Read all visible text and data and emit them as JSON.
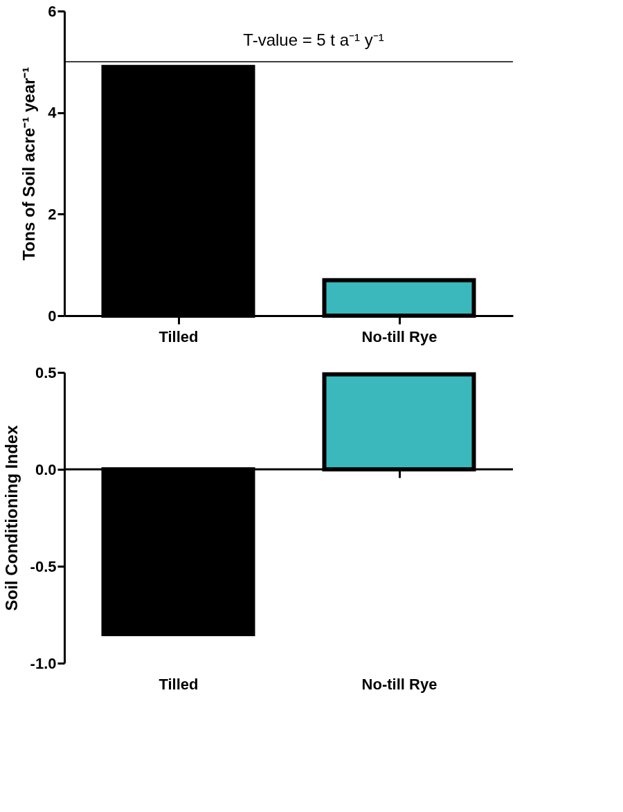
{
  "chart_data": [
    {
      "type": "bar",
      "ylabel": "Tons of Soil acre⁻¹ year⁻¹",
      "categories": [
        "Tilled",
        "No-till Rye"
      ],
      "series": [
        {
          "color": null,
          "colors": [
            "#000000",
            "#3ab8bc"
          ],
          "values": [
            4.9,
            0.7
          ]
        }
      ],
      "ylim": [
        0,
        6
      ],
      "yticks": [
        0,
        2,
        4,
        6
      ],
      "grid": false,
      "ref_lines": [
        {
          "axis": "y",
          "value": 5,
          "label": "T-value = 5 t a⁻¹ y⁻¹",
          "color": "#000000"
        }
      ]
    },
    {
      "type": "bar",
      "ylabel": "Soil Conditioning Index",
      "categories": [
        "Tilled",
        "No-till Rye"
      ],
      "series": [
        {
          "color": null,
          "colors": [
            "#000000",
            "#3ab8bc"
          ],
          "values": [
            -0.85,
            0.49
          ]
        }
      ],
      "ylim": [
        -1.0,
        0.5
      ],
      "yticks": [
        {
          "value": 0.5,
          "label": "0.5"
        },
        {
          "value": 0.0,
          "label": "0.0"
        },
        {
          "value": -0.5,
          "label": "-0.5"
        },
        {
          "value": -1.0,
          "label": "-1.0"
        }
      ],
      "grid": false,
      "ref_lines": [
        {
          "axis": "y",
          "value": 0.0,
          "label": null,
          "color": "#000000"
        }
      ]
    }
  ]
}
